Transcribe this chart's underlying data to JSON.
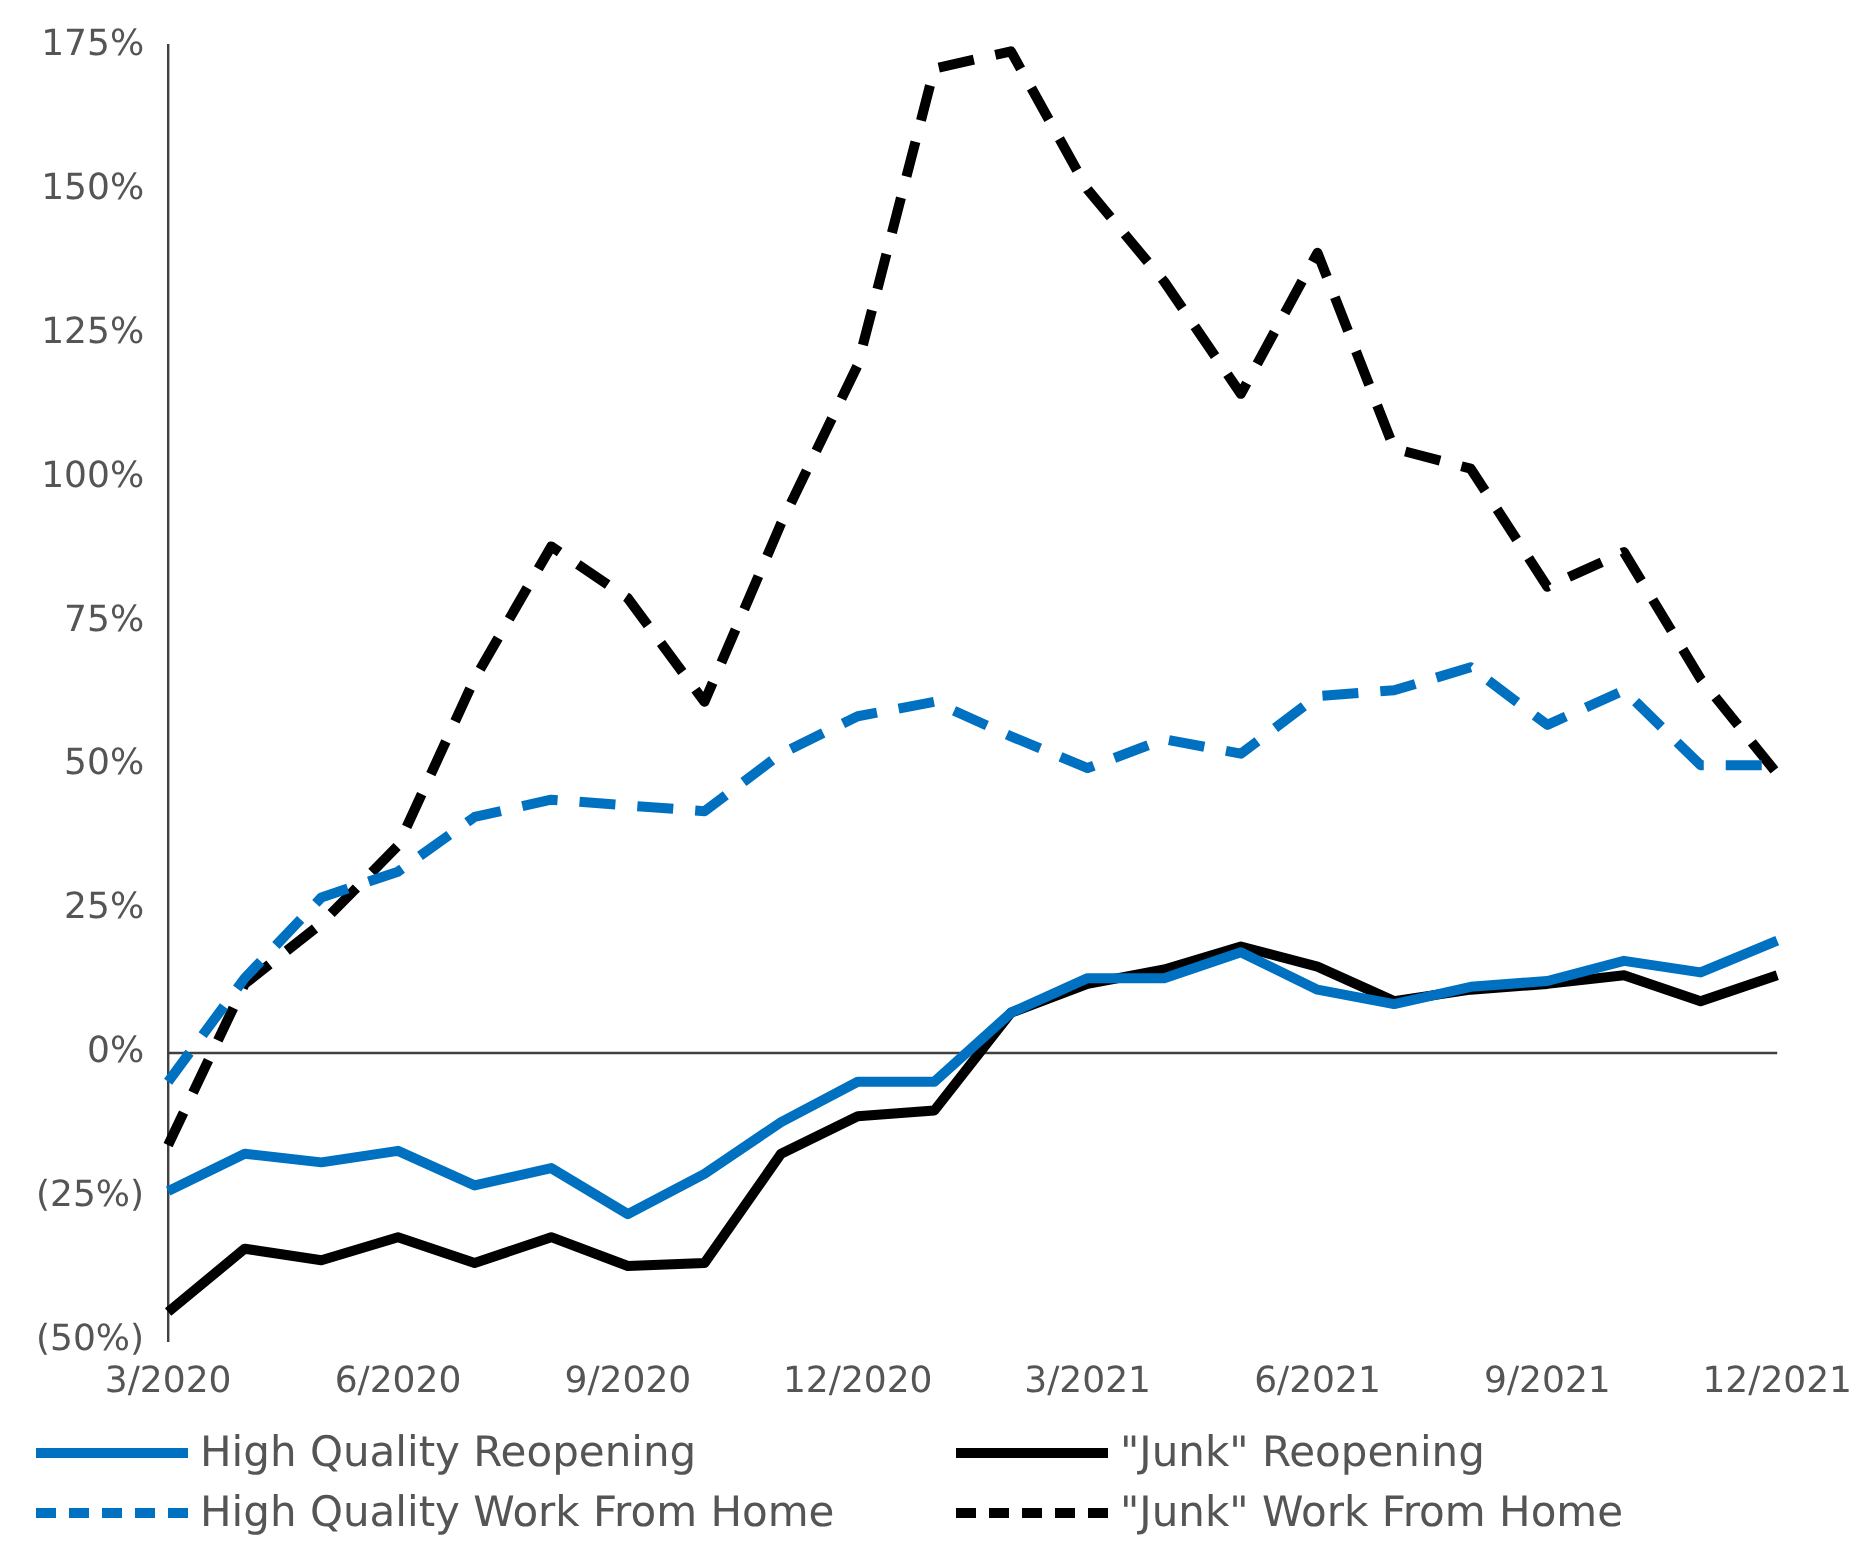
{
  "chart_data": {
    "type": "line",
    "categories": [
      "3/2020",
      null,
      null,
      "6/2020",
      null,
      null,
      "9/2020",
      null,
      null,
      "12/2020",
      null,
      null,
      "3/2021",
      null,
      null,
      "6/2021",
      null,
      null,
      "9/2021",
      null,
      null,
      "12/2021"
    ],
    "series": [
      {
        "name": "High Quality Reopening",
        "color": "#0070c0",
        "line_style": "solid",
        "values": [
          -24,
          -17.5,
          -19,
          -17,
          -23,
          -20,
          -28,
          -21,
          -12,
          -5,
          -5,
          7,
          13,
          13,
          17.5,
          11,
          8.5,
          11.5,
          12.5,
          16,
          14,
          19.5
        ]
      },
      {
        "name": "\"Junk\" Reopening",
        "color": "#000000",
        "line_style": "solid",
        "values": [
          -45,
          -34,
          -36,
          -32,
          -36.5,
          -32,
          -37,
          -36.5,
          -17.5,
          -11,
          -10,
          7,
          12,
          14.5,
          18.5,
          15,
          9,
          11,
          12,
          13.5,
          9,
          13.5
        ]
      },
      {
        "name": "High Quality Work From Home",
        "color": "#0070c0",
        "line_style": "dashed",
        "values": [
          -5,
          13,
          27,
          31.5,
          41,
          44,
          43,
          42,
          52,
          58.5,
          61,
          55,
          49.5,
          54.5,
          52,
          62,
          63,
          67,
          57,
          63,
          50,
          50
        ]
      },
      {
        "name": "\"Junk\" Work From Home",
        "color": "#000000",
        "line_style": "dashed",
        "values": [
          -16,
          12,
          22.5,
          36,
          65,
          88,
          79,
          61,
          92,
          119.5,
          171,
          174,
          150,
          134,
          114.5,
          139,
          105,
          101.5,
          81,
          87,
          65,
          48.5
        ]
      }
    ],
    "ylim": [
      -50,
      175
    ],
    "yticks": [
      {
        "value": -50,
        "label": "(50%)"
      },
      {
        "value": -25,
        "label": "(25%)"
      },
      {
        "value": 0,
        "label": "0%"
      },
      {
        "value": 25,
        "label": "25%"
      },
      {
        "value": 50,
        "label": "50%"
      },
      {
        "value": 75,
        "label": "75%"
      },
      {
        "value": 100,
        "label": "100%"
      },
      {
        "value": 125,
        "label": "125%"
      },
      {
        "value": 150,
        "label": "150%"
      },
      {
        "value": 175,
        "label": "175%"
      }
    ],
    "ref_lines": [
      {
        "axis": "y",
        "value": 0,
        "color": "#404040"
      }
    ],
    "grid": false,
    "legend": "bottom",
    "marker": "none"
  }
}
